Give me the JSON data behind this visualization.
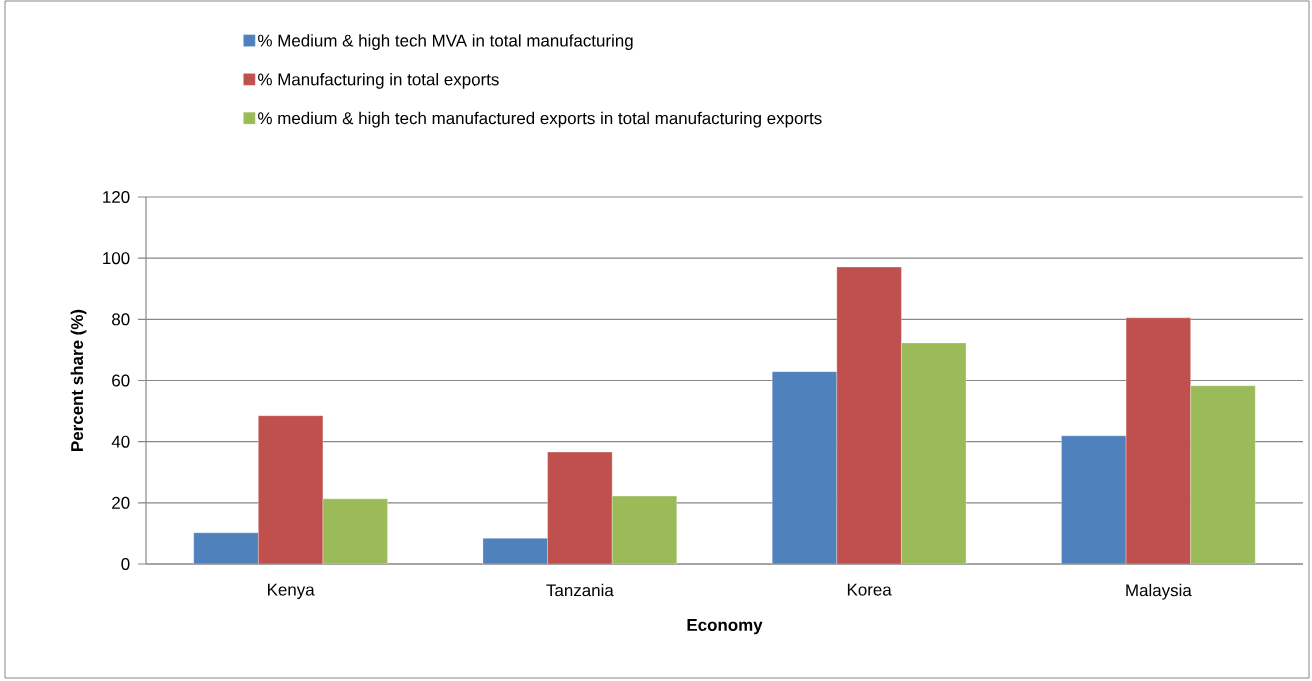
{
  "chart_data": {
    "type": "bar",
    "xlabel": "Economy",
    "ylabel": "Percent share (%)",
    "categories": [
      "Kenya",
      "Tanzania",
      "Korea",
      "Malaysia"
    ],
    "series": [
      {
        "name": "% Medium & high tech MVA in total manufacturing",
        "color": "#4f81bd",
        "values": [
          10.2,
          8.4,
          62.9,
          41.9
        ]
      },
      {
        "name": "% Manufacturing in total exports",
        "color": "#c0504d",
        "values": [
          48.5,
          36.6,
          97.1,
          80.5
        ]
      },
      {
        "name": "% medium & high tech manufactured exports in total manufacturing exports",
        "color": "#9bbb59",
        "values": [
          21.3,
          22.2,
          72.3,
          58.3
        ]
      }
    ],
    "ylim": [
      0,
      120
    ],
    "yticks": [
      0,
      20,
      40,
      60,
      80,
      100,
      120
    ],
    "grid": "y",
    "legend": "top"
  }
}
